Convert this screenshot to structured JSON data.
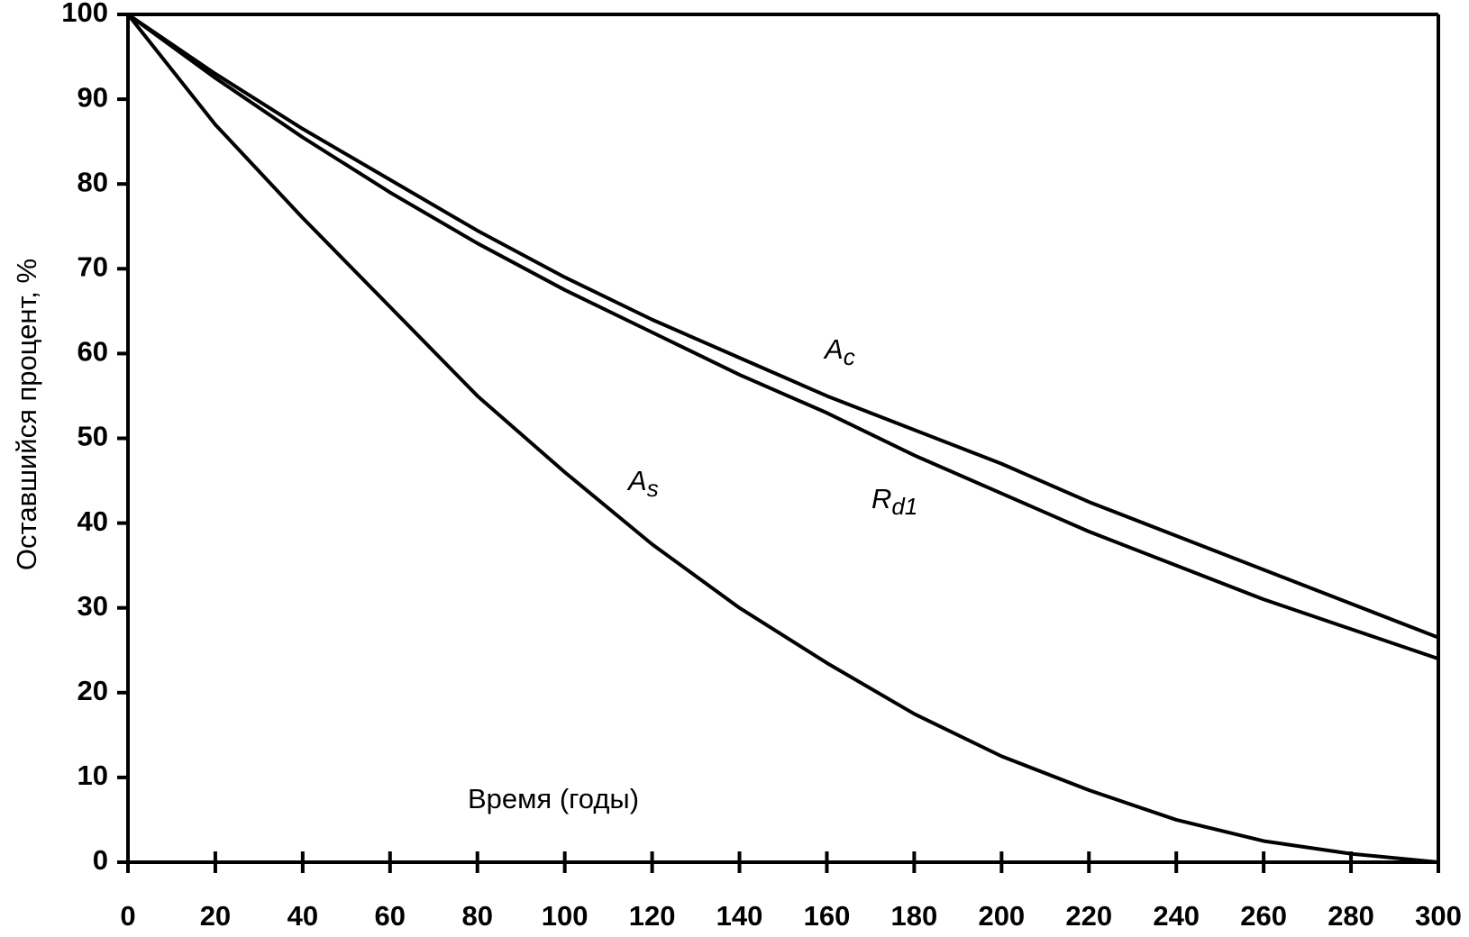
{
  "chart_data": {
    "type": "line",
    "y_label": "Оставшийся процент, %",
    "x_label": "Время (годы)",
    "x": [
      0,
      20,
      40,
      60,
      80,
      100,
      120,
      140,
      160,
      180,
      200,
      220,
      240,
      260,
      280,
      300
    ],
    "series": [
      {
        "name": "Ac",
        "color": "#000000",
        "values": [
          100,
          93,
          86.5,
          80.5,
          74.5,
          69,
          64,
          59.5,
          55,
          51,
          47,
          42.5,
          38.5,
          34.5,
          30.5,
          26.5
        ]
      },
      {
        "name": "Rd1",
        "color": "#000000",
        "values": [
          100,
          92.5,
          85.5,
          79,
          73,
          67.5,
          62.5,
          57.5,
          53,
          48,
          43.5,
          39,
          35,
          31,
          27.5,
          24
        ]
      },
      {
        "name": "As",
        "color": "#000000",
        "values": [
          100,
          87,
          76,
          65.5,
          55,
          46,
          37.5,
          30,
          23.5,
          17.5,
          12.5,
          8.5,
          5,
          2.5,
          1,
          0
        ]
      }
    ],
    "annotations": [
      {
        "main": "A",
        "sub": "c"
      },
      {
        "main": "R",
        "sub": "d1"
      },
      {
        "main": "A",
        "sub": "s"
      }
    ],
    "xlim": [
      0,
      300
    ],
    "xticks": [
      0,
      20,
      40,
      60,
      80,
      100,
      120,
      140,
      160,
      180,
      200,
      220,
      240,
      260,
      280,
      300
    ],
    "ylim": [
      0,
      100
    ],
    "yticks": [
      0,
      10,
      20,
      30,
      40,
      50,
      60,
      70,
      80,
      90,
      100
    ],
    "grid": false
  }
}
